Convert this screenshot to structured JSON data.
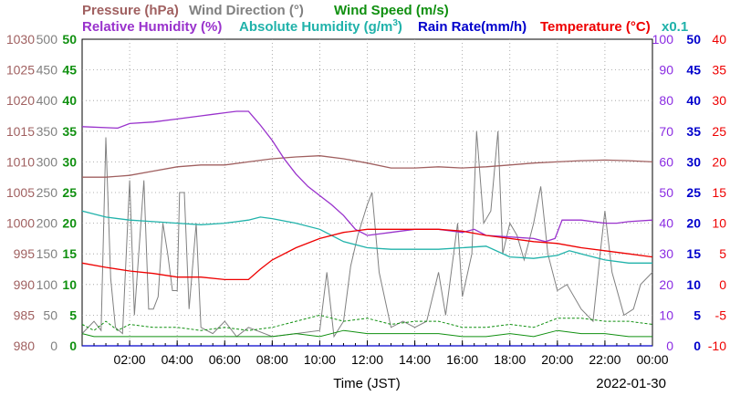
{
  "chart_data": {
    "type": "line",
    "xlabel": "Time (JST)",
    "date": "2022-01-30",
    "x_ticks": [
      "02:00",
      "04:00",
      "06:00",
      "08:00",
      "10:00",
      "12:00",
      "14:00",
      "16:00",
      "18:00",
      "20:00",
      "22:00",
      "00:00"
    ],
    "x_range_hours": [
      0,
      24
    ],
    "grid": true,
    "legend_titles": {
      "pressure": "Pressure (hPa)",
      "wind_direction": "Wind Direction (°)",
      "wind_speed": "Wind Speed (m/s)",
      "humidity": "Relative Humidity (%)",
      "abs_humidity": "Absolute Humidity (g/m",
      "abs_humidity_sup": "3",
      "abs_humidity_close": ")",
      "rain": "Rain Rate(mm/h)",
      "temperature": "Temperature (°C)",
      "abs_factor": "x0.1"
    },
    "axes": {
      "pressure": {
        "range": [
          980,
          1030
        ],
        "ticks": [
          "1030",
          "1025",
          "1020",
          "1015",
          "1010",
          "1005",
          "1000",
          "995",
          "990",
          "985",
          "980"
        ],
        "color": "#a06060"
      },
      "wind_direction": {
        "range": [
          0,
          500
        ],
        "ticks": [
          "500",
          "450",
          "400",
          "350",
          "300",
          "250",
          "200",
          "150",
          "100",
          "50",
          "0"
        ],
        "color": "#808080"
      },
      "wind_speed": {
        "range": [
          0,
          50
        ],
        "ticks": [
          "50",
          "45",
          "40",
          "35",
          "30",
          "25",
          "20",
          "15",
          "10",
          "5",
          "0"
        ],
        "color": "#109010"
      },
      "humidity": {
        "range": [
          0,
          100
        ],
        "ticks": [
          "100",
          "90",
          "80",
          "70",
          "60",
          "50",
          "40",
          "30",
          "20",
          "10",
          "0"
        ],
        "color": "#8a2be2"
      },
      "rain": {
        "range": [
          0,
          50
        ],
        "ticks": [
          "50",
          "45",
          "40",
          "35",
          "30",
          "25",
          "20",
          "15",
          "10",
          "5",
          "0"
        ],
        "color": "#0000cc"
      },
      "temperature": {
        "range": [
          -10,
          40
        ],
        "ticks": [
          "40",
          "35",
          "30",
          "25",
          "20",
          "15",
          "10",
          "5",
          "0",
          "-5",
          "-10"
        ],
        "color": "#ee0000"
      }
    },
    "series": [
      {
        "key": "pressure",
        "name": "Pressure (hPa)",
        "color": "#a06060",
        "axis": "pressure",
        "points": [
          [
            0,
            1007.5
          ],
          [
            1,
            1007.5
          ],
          [
            2,
            1007.8
          ],
          [
            3,
            1008.5
          ],
          [
            4,
            1009.2
          ],
          [
            5,
            1009.5
          ],
          [
            6,
            1009.5
          ],
          [
            7,
            1010
          ],
          [
            8,
            1010.5
          ],
          [
            9,
            1010.8
          ],
          [
            10,
            1011
          ],
          [
            11,
            1010.5
          ],
          [
            12,
            1009.8
          ],
          [
            13,
            1009
          ],
          [
            14,
            1009
          ],
          [
            15,
            1009.2
          ],
          [
            16,
            1009
          ],
          [
            17,
            1009.2
          ],
          [
            18,
            1009.5
          ],
          [
            19,
            1009.8
          ],
          [
            20,
            1010
          ],
          [
            21,
            1010.2
          ],
          [
            22,
            1010.3
          ],
          [
            23,
            1010.2
          ],
          [
            24,
            1010
          ]
        ]
      },
      {
        "key": "humidity",
        "name": "Relative Humidity (%)",
        "color": "#9932cc",
        "axis": "humidity",
        "points": [
          [
            0,
            71.5
          ],
          [
            1.5,
            71
          ],
          [
            2,
            72.5
          ],
          [
            3,
            73
          ],
          [
            4,
            74
          ],
          [
            5,
            75
          ],
          [
            5.5,
            75.5
          ],
          [
            6,
            76
          ],
          [
            6.5,
            76.5
          ],
          [
            7,
            76.5
          ],
          [
            7.5,
            72
          ],
          [
            8,
            67
          ],
          [
            8.5,
            61
          ],
          [
            9,
            56
          ],
          [
            9.5,
            52
          ],
          [
            10,
            49
          ],
          [
            10.5,
            46
          ],
          [
            11,
            42.5
          ],
          [
            11.5,
            38
          ],
          [
            12,
            36
          ],
          [
            12.5,
            36.5
          ],
          [
            13,
            37
          ],
          [
            14,
            38
          ],
          [
            15,
            38
          ],
          [
            16,
            37
          ],
          [
            16.5,
            38
          ],
          [
            17,
            36
          ],
          [
            18,
            35.5
          ],
          [
            19,
            35
          ],
          [
            19.5,
            34
          ],
          [
            19.9,
            35
          ],
          [
            20.2,
            41
          ],
          [
            21,
            41
          ],
          [
            22,
            40
          ],
          [
            22.5,
            40
          ],
          [
            23,
            40.5
          ],
          [
            24,
            41
          ]
        ]
      },
      {
        "key": "abs_humidity",
        "name": "Absolute Humidity (g/m3) x0.1",
        "color": "#20b2aa",
        "axis": "humidity",
        "points": [
          [
            0,
            44
          ],
          [
            1,
            42
          ],
          [
            2,
            41
          ],
          [
            3,
            40.5
          ],
          [
            4,
            40
          ],
          [
            5,
            39.5
          ],
          [
            6,
            40
          ],
          [
            7,
            41
          ],
          [
            7.5,
            42
          ],
          [
            8,
            41.5
          ],
          [
            9,
            40
          ],
          [
            10,
            38
          ],
          [
            11,
            34
          ],
          [
            12,
            32
          ],
          [
            13,
            31.5
          ],
          [
            14,
            31.5
          ],
          [
            15,
            31.5
          ],
          [
            16,
            32
          ],
          [
            17,
            32.5
          ],
          [
            18,
            29
          ],
          [
            19,
            28.5
          ],
          [
            20,
            29.5
          ],
          [
            20.5,
            31
          ],
          [
            21,
            30
          ],
          [
            22,
            28
          ],
          [
            23,
            27
          ],
          [
            24,
            27
          ]
        ]
      },
      {
        "key": "temperature",
        "name": "Temperature (°C)",
        "color": "#ee0000",
        "axis": "temperature",
        "points": [
          [
            0,
            3.5
          ],
          [
            1,
            2.8
          ],
          [
            2,
            2.2
          ],
          [
            3,
            1.8
          ],
          [
            4,
            1.2
          ],
          [
            5,
            1.2
          ],
          [
            6,
            0.8
          ],
          [
            7,
            0.8
          ],
          [
            7.5,
            2.5
          ],
          [
            8,
            4
          ],
          [
            9,
            6
          ],
          [
            10,
            7.5
          ],
          [
            11,
            8.5
          ],
          [
            12,
            9
          ],
          [
            13,
            9
          ],
          [
            14,
            9
          ],
          [
            15,
            9
          ],
          [
            16,
            8.7
          ],
          [
            17,
            8
          ],
          [
            18,
            7.5
          ],
          [
            19,
            7
          ],
          [
            20,
            6.7
          ],
          [
            21,
            6
          ],
          [
            22,
            5.5
          ],
          [
            23,
            5
          ],
          [
            24,
            4.5
          ]
        ]
      },
      {
        "key": "wind_direction",
        "name": "Wind Direction (°)",
        "color": "#808080",
        "axis": "wind_direction",
        "points": [
          [
            0,
            20
          ],
          [
            0.5,
            40
          ],
          [
            0.8,
            25
          ],
          [
            1,
            340
          ],
          [
            1.2,
            110
          ],
          [
            1.4,
            30
          ],
          [
            1.7,
            20
          ],
          [
            2,
            270
          ],
          [
            2.2,
            50
          ],
          [
            2.6,
            270
          ],
          [
            2.8,
            60
          ],
          [
            3,
            60
          ],
          [
            3.2,
            80
          ],
          [
            3.4,
            200
          ],
          [
            3.6,
            150
          ],
          [
            3.8,
            90
          ],
          [
            4,
            90
          ],
          [
            4.1,
            250
          ],
          [
            4.3,
            250
          ],
          [
            4.5,
            60
          ],
          [
            4.8,
            200
          ],
          [
            5,
            30
          ],
          [
            5.5,
            20
          ],
          [
            6,
            40
          ],
          [
            6.5,
            15
          ],
          [
            7,
            30
          ],
          [
            8,
            15
          ],
          [
            9,
            20
          ],
          [
            10,
            25
          ],
          [
            10.3,
            120
          ],
          [
            10.6,
            15
          ],
          [
            11,
            40
          ],
          [
            11.3,
            130
          ],
          [
            11.6,
            180
          ],
          [
            12,
            230
          ],
          [
            12.2,
            250
          ],
          [
            12.5,
            120
          ],
          [
            13,
            30
          ],
          [
            13.5,
            40
          ],
          [
            14,
            30
          ],
          [
            14.5,
            40
          ],
          [
            15,
            120
          ],
          [
            15.3,
            50
          ],
          [
            15.8,
            200
          ],
          [
            16,
            80
          ],
          [
            16.4,
            150
          ],
          [
            16.6,
            350
          ],
          [
            16.9,
            200
          ],
          [
            17.2,
            220
          ],
          [
            17.5,
            350
          ],
          [
            17.7,
            150
          ],
          [
            18,
            200
          ],
          [
            18.3,
            180
          ],
          [
            18.6,
            140
          ],
          [
            19,
            200
          ],
          [
            19.3,
            260
          ],
          [
            19.6,
            150
          ],
          [
            20,
            90
          ],
          [
            20.4,
            100
          ],
          [
            21,
            60
          ],
          [
            21.5,
            40
          ],
          [
            21.8,
            150
          ],
          [
            22,
            220
          ],
          [
            22.3,
            120
          ],
          [
            22.8,
            50
          ],
          [
            23.2,
            60
          ],
          [
            23.5,
            100
          ],
          [
            24,
            120
          ]
        ]
      },
      {
        "key": "wind_speed",
        "name": "Wind Speed (m/s)",
        "color": "#109010",
        "axis": "wind_speed",
        "points": [
          [
            0,
            2
          ],
          [
            0.5,
            1.5
          ],
          [
            1,
            1.5
          ],
          [
            1.5,
            1.5
          ],
          [
            2,
            1.5
          ],
          [
            3,
            1.5
          ],
          [
            4,
            1.5
          ],
          [
            5,
            1.5
          ],
          [
            6,
            1.5
          ],
          [
            7,
            1.5
          ],
          [
            8,
            1.5
          ],
          [
            9,
            2
          ],
          [
            10,
            1.5
          ],
          [
            11,
            2.5
          ],
          [
            12,
            2
          ],
          [
            13,
            2
          ],
          [
            14,
            2
          ],
          [
            15,
            2
          ],
          [
            16,
            1.5
          ],
          [
            17,
            1.5
          ],
          [
            18,
            2
          ],
          [
            19,
            1.5
          ],
          [
            20,
            2.5
          ],
          [
            21,
            2
          ],
          [
            22,
            2
          ],
          [
            23,
            1.5
          ],
          [
            24,
            1.5
          ]
        ]
      },
      {
        "key": "wind_gust",
        "name": "Wind Speed (m/s) gust",
        "color": "#109010",
        "axis": "wind_speed",
        "dashed": true,
        "points": [
          [
            0,
            3.5
          ],
          [
            0.5,
            2.5
          ],
          [
            1,
            4
          ],
          [
            1.5,
            2.5
          ],
          [
            2,
            3.5
          ],
          [
            3,
            3
          ],
          [
            4,
            3
          ],
          [
            5,
            2.5
          ],
          [
            6,
            3
          ],
          [
            7,
            2.5
          ],
          [
            8,
            3
          ],
          [
            9,
            4
          ],
          [
            10,
            5
          ],
          [
            11,
            4
          ],
          [
            12,
            4.5
          ],
          [
            13,
            3.5
          ],
          [
            14,
            4
          ],
          [
            15,
            4
          ],
          [
            16,
            3
          ],
          [
            17,
            3
          ],
          [
            18,
            3.5
          ],
          [
            19,
            3
          ],
          [
            20,
            4.5
          ],
          [
            21,
            4.5
          ],
          [
            22,
            4
          ],
          [
            23,
            4
          ],
          [
            24,
            3.5
          ]
        ]
      },
      {
        "key": "rain",
        "name": "Rain Rate(mm/h)",
        "color": "#0000cc",
        "axis": "rain",
        "points": [
          [
            0,
            0
          ],
          [
            24,
            0
          ]
        ]
      }
    ]
  }
}
